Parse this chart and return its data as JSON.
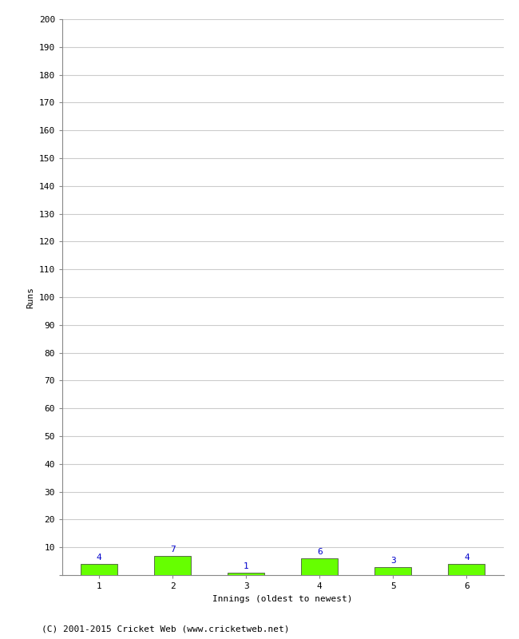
{
  "innings": [
    1,
    2,
    3,
    4,
    5,
    6
  ],
  "runs": [
    4,
    7,
    1,
    6,
    3,
    4
  ],
  "not_out": [
    false,
    false,
    true,
    false,
    false,
    false
  ],
  "bar_color": "#66ff00",
  "bar_edge_color": "#333333",
  "not_out_label_color": "#0000cc",
  "out_label_color": "#0000cc",
  "xlabel": "Innings (oldest to newest)",
  "ylabel": "Runs",
  "ylim": [
    0,
    200
  ],
  "yticks": [
    0,
    10,
    20,
    30,
    40,
    50,
    60,
    70,
    80,
    90,
    100,
    110,
    120,
    130,
    140,
    150,
    160,
    170,
    180,
    190,
    200
  ],
  "footer": "(C) 2001-2015 Cricket Web (www.cricketweb.net)",
  "grid_color": "#cccccc",
  "background_color": "#ffffff",
  "label_fontsize": 8,
  "axis_fontsize": 8,
  "tick_fontsize": 8,
  "footer_fontsize": 8
}
